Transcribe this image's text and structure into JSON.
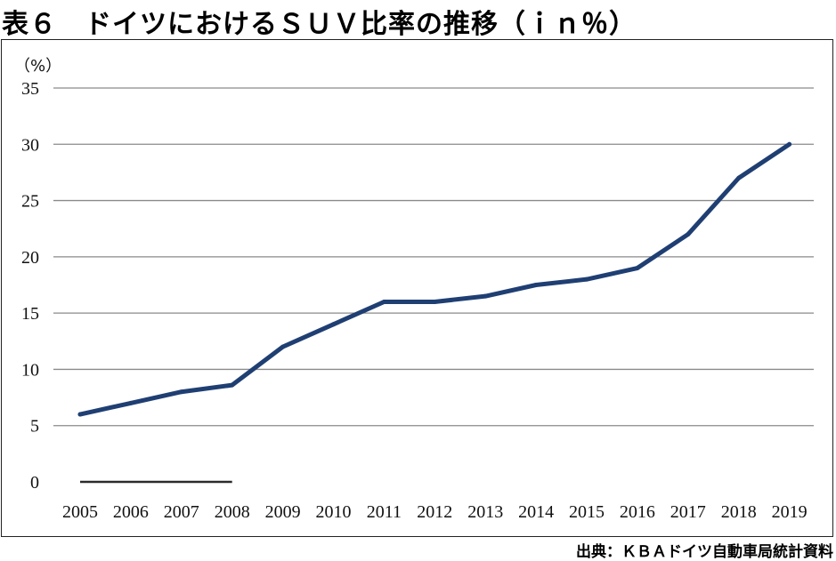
{
  "title": "表６　ドイツにおけるＳＵＶ比率の推移（ｉｎ％）",
  "source": "出典：ＫＢＡドイツ自動車局統計資料",
  "chart_data": {
    "type": "line",
    "title": "表６　ドイツにおけるＳＵＶ比率の推移（ｉｎ％）",
    "ylabel": "（%）",
    "xlabel": "",
    "categories": [
      "2005",
      "2006",
      "2007",
      "2008",
      "2009",
      "2010",
      "2011",
      "2012",
      "2013",
      "2014",
      "2015",
      "2016",
      "2017",
      "2018",
      "2019"
    ],
    "series": [
      {
        "values": [
          6,
          7,
          8,
          8.6,
          12,
          14,
          16,
          16,
          16.5,
          17.5,
          18,
          19,
          22,
          27,
          30
        ]
      }
    ],
    "baseline_segment": {
      "from": "2005",
      "to": "2008",
      "value": 0
    },
    "ylim": [
      0,
      35
    ],
    "yticks": [
      0,
      5,
      10,
      15,
      20,
      25,
      30,
      35
    ],
    "grid": true,
    "colors": {
      "line": "#1f3f73",
      "grid": "#8a8a8a",
      "baseline": "#2b2b2b"
    }
  }
}
